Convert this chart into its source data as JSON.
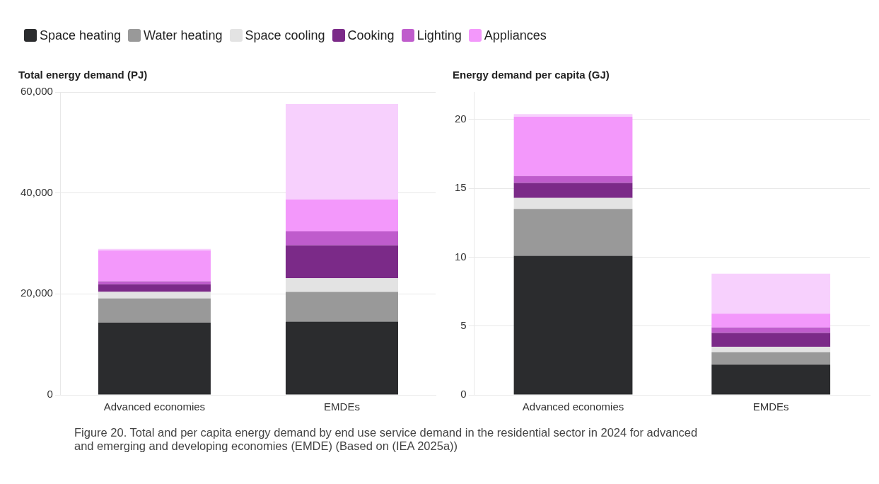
{
  "chart_data": [
    {
      "type": "bar",
      "title": "Total energy demand (PJ)",
      "stacked": true,
      "categories": [
        "Advanced economies",
        "EMDEs"
      ],
      "ylim": [
        0,
        60000
      ],
      "yticks": [
        0,
        {
          "value": 20000,
          "label": "20,000"
        },
        {
          "value": 40000,
          "label": "40,000"
        },
        {
          "value": 60000,
          "label": "60,000"
        }
      ],
      "grid": "y",
      "legend": "top",
      "series": [
        {
          "name": "Space heating",
          "color": "#2b2c2e",
          "values": [
            14300,
            14500
          ]
        },
        {
          "name": "Water heating",
          "color": "#999999",
          "values": [
            4800,
            5900
          ]
        },
        {
          "name": "Space cooling",
          "color": "#e3e3e3",
          "values": [
            1300,
            2700
          ]
        },
        {
          "name": "Cooking",
          "color": "#7b2a88",
          "values": [
            1500,
            6500
          ]
        },
        {
          "name": "Lighting",
          "color": "#bf5ccc",
          "values": [
            600,
            2800
          ]
        },
        {
          "name": "Appliances",
          "color": "#f398fb",
          "values": [
            6100,
            6300
          ]
        },
        {
          "color": "#f7d0fd",
          "values": [
            300,
            18900
          ]
        }
      ],
      "annotations": [
        "Figure 20. Total and per capita energy demand by end use service demand in the residential sector in 2024 for advanced and emerging and developing economies (EMDE) (Based on (IEA 2025a))"
      ]
    },
    {
      "type": "bar",
      "title": "Energy demand per capita (GJ)",
      "stacked": true,
      "categories": [
        "Advanced economies",
        "EMDEs"
      ],
      "ylim": [
        0,
        22
      ],
      "yticks": [
        0,
        5,
        10,
        15,
        20
      ],
      "grid": "y",
      "series": [
        {
          "color": "#2b2c2e",
          "values": [
            10.1,
            2.2
          ]
        },
        {
          "color": "#999999",
          "values": [
            3.4,
            0.9
          ]
        },
        {
          "color": "#e3e3e3",
          "values": [
            0.8,
            0.4
          ]
        },
        {
          "color": "#7b2a88",
          "values": [
            1.1,
            1.0
          ]
        },
        {
          "color": "#bf5ccc",
          "values": [
            0.5,
            0.4
          ]
        },
        {
          "color": "#f398fb",
          "values": [
            4.3,
            1.0
          ]
        },
        {
          "color": "#f7d0fd",
          "values": [
            0.2,
            2.9
          ]
        }
      ]
    }
  ]
}
